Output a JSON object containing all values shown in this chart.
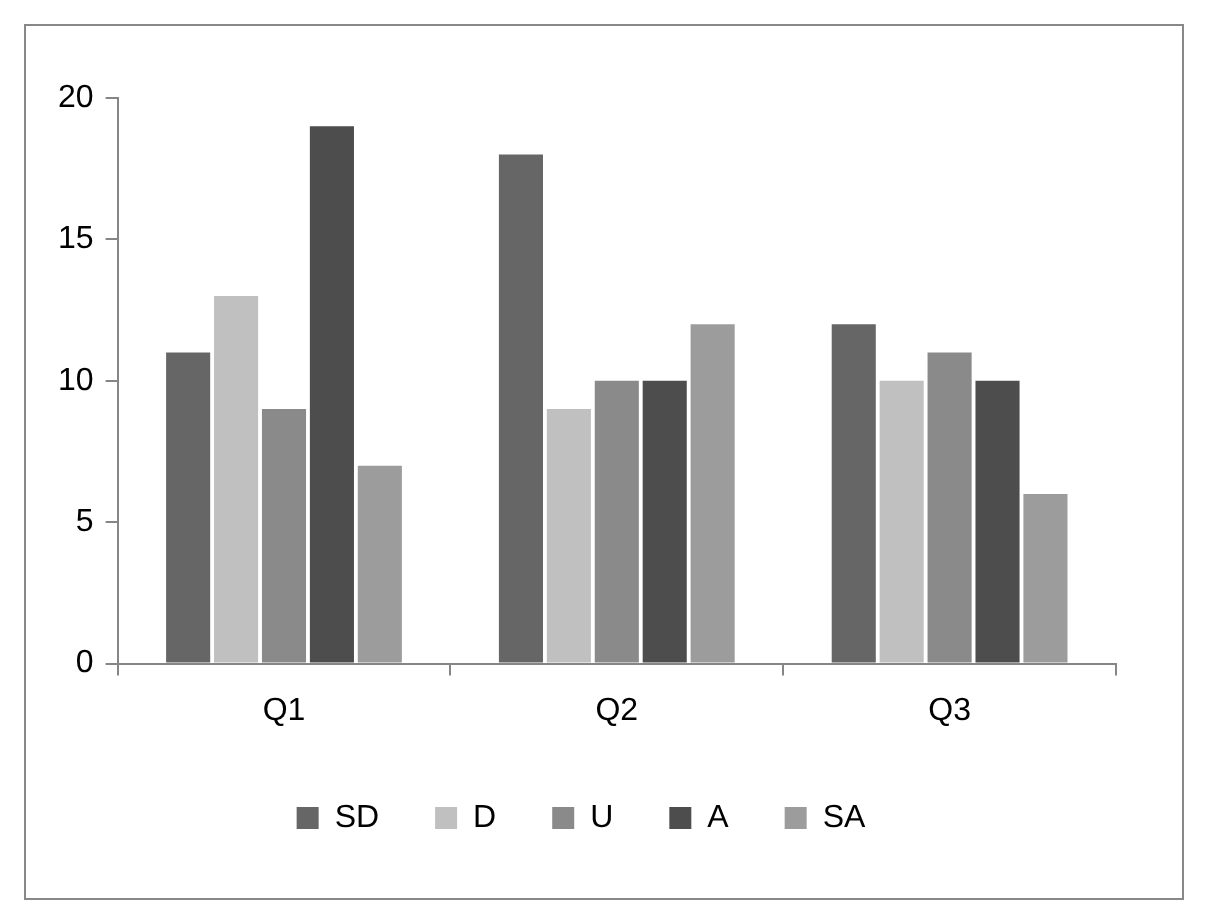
{
  "chart_data": {
    "type": "bar",
    "categories": [
      "Q1",
      "Q2",
      "Q3"
    ],
    "series": [
      {
        "name": "SD",
        "color": "#666666",
        "values": [
          11,
          18,
          12
        ]
      },
      {
        "name": "D",
        "color": "#c0c0c0",
        "values": [
          13,
          9,
          10
        ]
      },
      {
        "name": "U",
        "color": "#8a8a8a",
        "values": [
          9,
          10,
          11
        ]
      },
      {
        "name": "A",
        "color": "#4d4d4d",
        "values": [
          19,
          10,
          10
        ]
      },
      {
        "name": "SA",
        "color": "#9c9c9c",
        "values": [
          7,
          12,
          6
        ]
      }
    ],
    "ylim": [
      0,
      20
    ],
    "yticks": [
      0,
      5,
      10,
      15,
      20
    ],
    "grid": false,
    "legend": "bottom"
  }
}
